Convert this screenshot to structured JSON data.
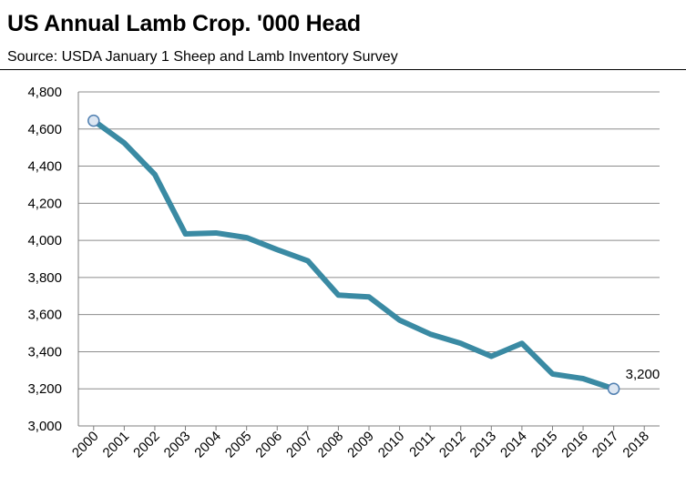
{
  "chart_data": {
    "type": "line",
    "title": "US Annual Lamb Crop. '000 Head",
    "subtitle": "Source: USDA January 1 Sheep and Lamb Inventory Survey",
    "xlabel": "",
    "ylabel": "",
    "categories": [
      "2000",
      "2001",
      "2002",
      "2003",
      "2004",
      "2005",
      "2006",
      "2007",
      "2008",
      "2009",
      "2010",
      "2011",
      "2012",
      "2013",
      "2014",
      "2015",
      "2016",
      "2017",
      "2018"
    ],
    "series": [
      {
        "values": [
          4645,
          4525,
          4355,
          4035,
          4040,
          4015,
          3950,
          3890,
          3705,
          3695,
          3570,
          3495,
          3445,
          3375,
          3445,
          3280,
          3255,
          3200,
          null
        ]
      }
    ],
    "ylim": [
      3000,
      4800
    ],
    "yticks": [
      "3,000",
      "3,200",
      "3,400",
      "3,600",
      "3,800",
      "4,000",
      "4,200",
      "4,400",
      "4,600",
      "4,800"
    ],
    "annotations": [
      {
        "category": "2017",
        "text": "3,200"
      }
    ],
    "grid": true,
    "legend": "none",
    "colors": {
      "line": "#3a8aa3",
      "marker_fill": "#dce6f2",
      "marker_stroke": "#4f7fb0",
      "grid": "#8c8c8c"
    }
  }
}
